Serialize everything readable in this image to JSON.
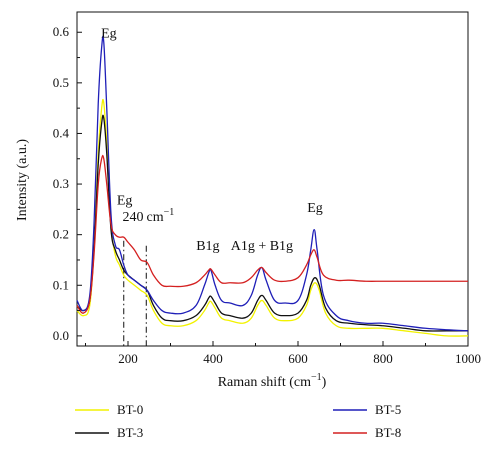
{
  "chart_data": {
    "type": "line",
    "title": "",
    "xlabel": "Raman shift (cm",
    "xlabel_sup": "−1",
    "xlabel_suffix": ")",
    "ylabel": "Intensity (a.u.)",
    "xlim": [
      80,
      1000
    ],
    "ylim": [
      -0.02,
      0.64
    ],
    "x_ticks": [
      200,
      400,
      600,
      800,
      1000
    ],
    "y_ticks": [
      0.0,
      0.1,
      0.2,
      0.3,
      0.4,
      0.5,
      0.6
    ],
    "y_tick_labels": [
      "0.0",
      "0.1",
      "0.2",
      "0.3",
      "0.4",
      "0.5",
      "0.6"
    ],
    "legend_position": "bottom",
    "series": [
      {
        "name": "BT-0",
        "color": "#f2f200",
        "x": [
          80,
          95,
          110,
          120,
          130,
          138,
          143,
          150,
          160,
          170,
          180,
          190,
          200,
          215,
          230,
          245,
          260,
          280,
          300,
          330,
          360,
          380,
          390,
          395,
          405,
          420,
          440,
          470,
          490,
          505,
          515,
          525,
          545,
          570,
          600,
          620,
          630,
          640,
          650,
          665,
          690,
          720,
          760,
          800,
          850,
          900,
          950,
          1000
        ],
        "y": [
          0.05,
          0.04,
          0.06,
          0.17,
          0.36,
          0.45,
          0.46,
          0.38,
          0.22,
          0.16,
          0.14,
          0.12,
          0.11,
          0.1,
          0.09,
          0.08,
          0.05,
          0.025,
          0.02,
          0.02,
          0.03,
          0.05,
          0.065,
          0.068,
          0.055,
          0.035,
          0.03,
          0.025,
          0.035,
          0.06,
          0.07,
          0.06,
          0.035,
          0.03,
          0.035,
          0.06,
          0.09,
          0.105,
          0.09,
          0.045,
          0.02,
          0.015,
          0.015,
          0.015,
          0.01,
          0.005,
          0.0,
          0.0
        ]
      },
      {
        "name": "BT-3",
        "color": "#111111",
        "x": [
          80,
          95,
          110,
          120,
          130,
          138,
          143,
          150,
          160,
          170,
          180,
          190,
          200,
          215,
          230,
          245,
          260,
          280,
          300,
          330,
          360,
          380,
          390,
          395,
          405,
          420,
          440,
          470,
          490,
          505,
          515,
          525,
          545,
          570,
          600,
          620,
          630,
          640,
          650,
          665,
          690,
          720,
          760,
          800,
          850,
          900,
          950,
          1000
        ],
        "y": [
          0.06,
          0.05,
          0.07,
          0.17,
          0.34,
          0.42,
          0.43,
          0.36,
          0.21,
          0.17,
          0.15,
          0.13,
          0.12,
          0.11,
          0.1,
          0.09,
          0.06,
          0.035,
          0.03,
          0.03,
          0.04,
          0.06,
          0.075,
          0.078,
          0.065,
          0.045,
          0.04,
          0.035,
          0.045,
          0.07,
          0.08,
          0.07,
          0.045,
          0.04,
          0.045,
          0.07,
          0.1,
          0.115,
          0.1,
          0.055,
          0.03,
          0.025,
          0.022,
          0.02,
          0.015,
          0.01,
          0.01,
          0.01
        ]
      },
      {
        "name": "BT-5",
        "color": "#1f1fb8",
        "x": [
          80,
          95,
          110,
          120,
          130,
          138,
          143,
          150,
          160,
          170,
          180,
          190,
          200,
          215,
          230,
          245,
          260,
          280,
          300,
          330,
          360,
          380,
          390,
          395,
          405,
          420,
          440,
          470,
          490,
          505,
          515,
          525,
          545,
          570,
          600,
          620,
          630,
          638,
          645,
          660,
          690,
          720,
          760,
          800,
          850,
          900,
          950,
          1000
        ],
        "y": [
          0.07,
          0.05,
          0.08,
          0.22,
          0.46,
          0.57,
          0.58,
          0.45,
          0.24,
          0.18,
          0.17,
          0.14,
          0.12,
          0.11,
          0.1,
          0.09,
          0.07,
          0.05,
          0.045,
          0.045,
          0.06,
          0.1,
          0.125,
          0.13,
          0.1,
          0.07,
          0.065,
          0.06,
          0.08,
          0.12,
          0.135,
          0.11,
          0.07,
          0.065,
          0.07,
          0.12,
          0.17,
          0.21,
          0.17,
          0.08,
          0.04,
          0.03,
          0.025,
          0.025,
          0.02,
          0.015,
          0.012,
          0.01
        ]
      },
      {
        "name": "BT-8",
        "color": "#d42020",
        "x": [
          80,
          95,
          110,
          120,
          130,
          138,
          143,
          150,
          160,
          170,
          180,
          190,
          200,
          215,
          230,
          245,
          260,
          280,
          300,
          330,
          360,
          380,
          390,
          395,
          405,
          420,
          440,
          470,
          490,
          505,
          515,
          525,
          545,
          570,
          600,
          620,
          630,
          638,
          645,
          660,
          690,
          720,
          760,
          800,
          850,
          900,
          950,
          1000
        ],
        "y": [
          0.06,
          0.045,
          0.07,
          0.16,
          0.3,
          0.35,
          0.35,
          0.3,
          0.22,
          0.2,
          0.195,
          0.195,
          0.185,
          0.17,
          0.15,
          0.145,
          0.12,
          0.1,
          0.098,
          0.098,
          0.105,
          0.12,
          0.13,
          0.132,
          0.12,
          0.105,
          0.105,
          0.105,
          0.115,
          0.13,
          0.135,
          0.125,
          0.11,
          0.108,
          0.115,
          0.14,
          0.16,
          0.17,
          0.155,
          0.12,
          0.11,
          0.11,
          0.108,
          0.108,
          0.108,
          0.108,
          0.108,
          0.108
        ]
      }
    ],
    "reference_lines": [
      {
        "x": 190,
        "style": "dash-dot"
      },
      {
        "x": 243,
        "style": "dash-dot"
      }
    ],
    "annotations": [
      {
        "text": "Eg",
        "x": 155,
        "y": 0.59
      },
      {
        "text": "Eg",
        "x": 192,
        "y": 0.26
      },
      {
        "text": "240",
        "x": 248,
        "y": 0.227,
        "suffix": "cm",
        "sup": "−1"
      },
      {
        "text": "B1g",
        "x": 388,
        "y": 0.17
      },
      {
        "text": "A1g + B1g",
        "x": 515,
        "y": 0.17
      },
      {
        "text": "Eg",
        "x": 640,
        "y": 0.245
      }
    ]
  }
}
